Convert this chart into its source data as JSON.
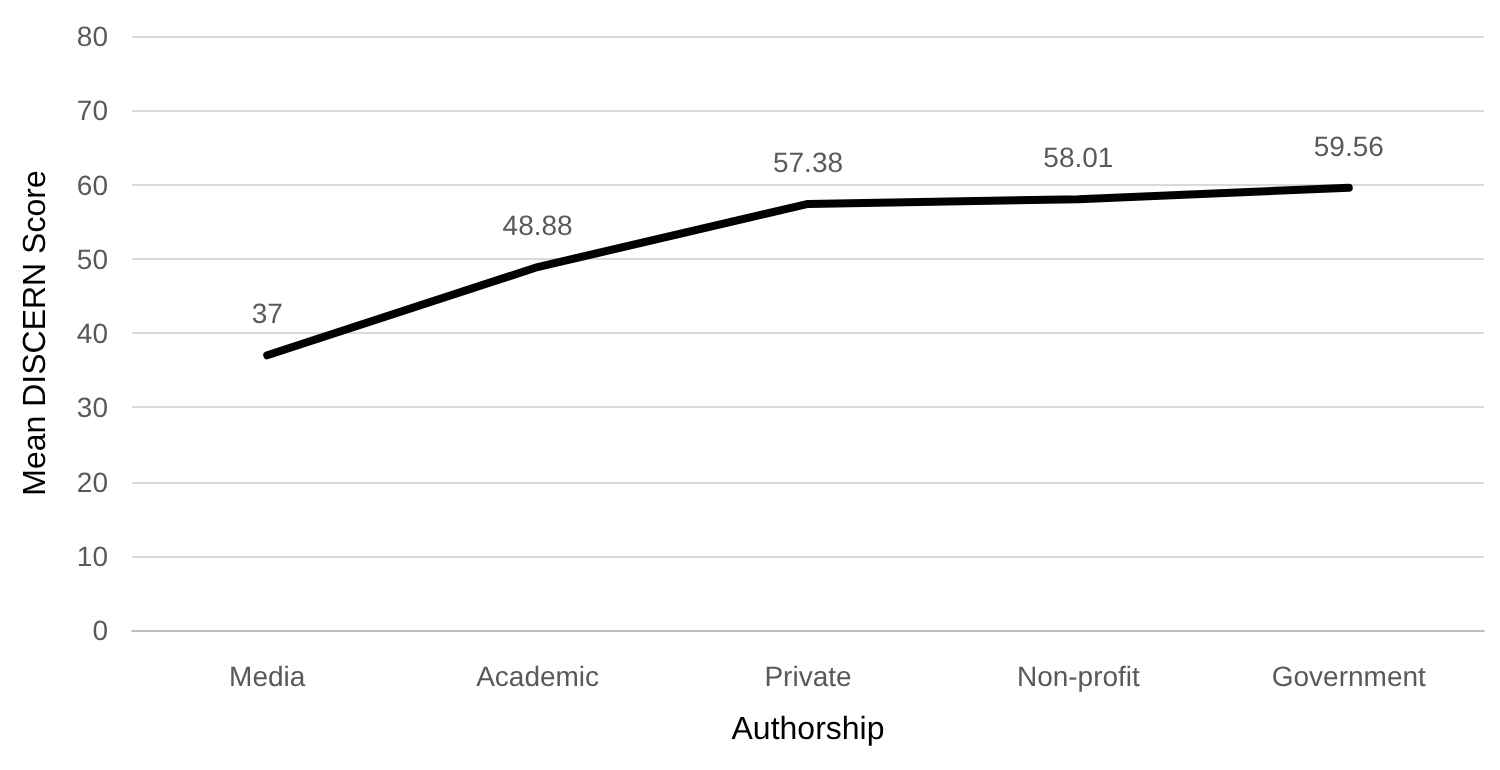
{
  "chart_data": {
    "type": "line",
    "xlabel": "Authorship",
    "ylabel": "Mean DISCERN Score",
    "categories": [
      "Media",
      "Academic",
      "Private",
      "Non-profit",
      "Government"
    ],
    "series": [
      {
        "color": "#000000",
        "values": [
          37,
          48.88,
          57.38,
          58.01,
          59.56
        ]
      }
    ],
    "ylim": [
      0,
      80
    ],
    "yticks": [
      0,
      10,
      20,
      30,
      40,
      50,
      60,
      70,
      80
    ],
    "grid": "y",
    "data_labels": true,
    "marker": "none",
    "line_style": "solid"
  }
}
